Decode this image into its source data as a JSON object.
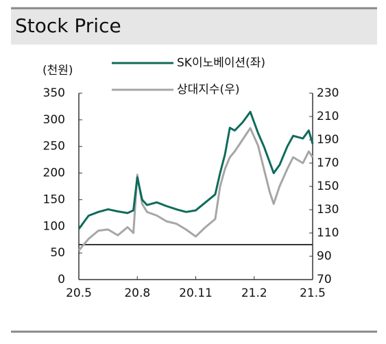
{
  "chart_data": {
    "type": "line",
    "title": "Stock Price",
    "y_label": "(천원)",
    "x": [
      0,
      0.5,
      1,
      1.5,
      2,
      2.5,
      2.8,
      3,
      3.25,
      3.5,
      4,
      4.5,
      5,
      5.5,
      6,
      6.5,
      7,
      7.25,
      7.5,
      7.75,
      8,
      8.4,
      8.8,
      9.2,
      9.5,
      9.8,
      10,
      10.3,
      10.7,
      11,
      11.5,
      11.8,
      12
    ],
    "xlim": [
      0,
      12
    ],
    "xticks": [
      {
        "value": 0,
        "label": "20.5"
      },
      {
        "value": 3,
        "label": "20.8"
      },
      {
        "value": 6,
        "label": "20.11"
      },
      {
        "value": 9,
        "label": "21.2"
      },
      {
        "value": 12,
        "label": "21.5"
      }
    ],
    "ylim": [
      0,
      350
    ],
    "yticks": [
      0,
      50,
      100,
      150,
      200,
      250,
      300,
      350
    ],
    "y2lim": [
      70,
      230
    ],
    "y2ticks": [
      70,
      90,
      110,
      130,
      150,
      170,
      190,
      210,
      230
    ],
    "reference_line": {
      "value": 100,
      "axis": "y2",
      "color": "#333333"
    },
    "series": [
      {
        "name": "SK이노베이션(좌)",
        "color": "#0f6b5c",
        "axis": "y",
        "values": [
          95,
          120,
          127,
          132,
          128,
          125,
          130,
          192,
          150,
          140,
          145,
          138,
          132,
          127,
          130,
          145,
          160,
          200,
          235,
          285,
          280,
          295,
          315,
          275,
          250,
          220,
          200,
          215,
          250,
          270,
          265,
          280,
          255
        ]
      },
      {
        "name": "상대지수(우)",
        "color": "#a6a6a6",
        "axis": "y2",
        "values": [
          95,
          105,
          112,
          113,
          108,
          115,
          110,
          160,
          135,
          128,
          125,
          120,
          118,
          113,
          107,
          115,
          122,
          150,
          165,
          175,
          180,
          190,
          200,
          185,
          165,
          145,
          135,
          150,
          165,
          175,
          170,
          180,
          175
        ]
      }
    ]
  }
}
